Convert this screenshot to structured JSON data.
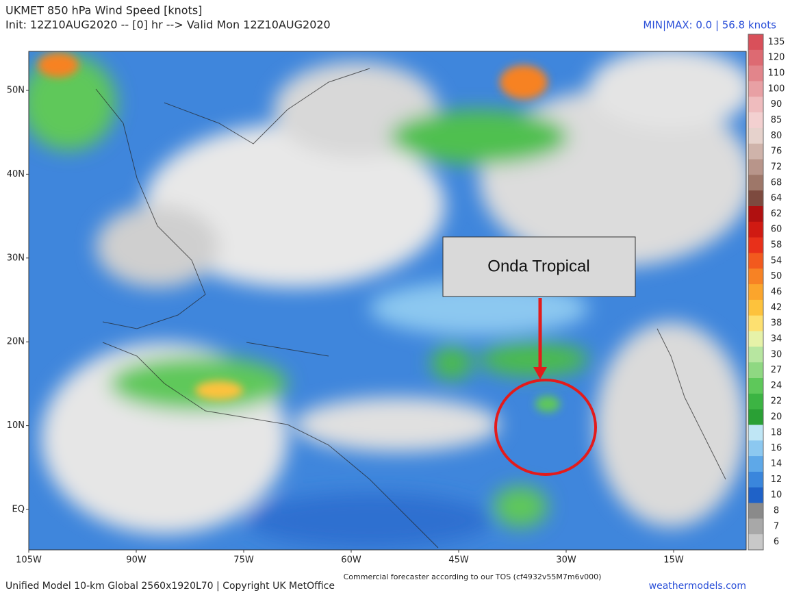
{
  "header": {
    "title": "UKMET 850 hPa Wind Speed [knots]",
    "subtitle": "Init: 12Z10AUG2020 -- [0] hr --> Valid Mon 12Z10AUG2020",
    "minmax": "MIN|MAX: 0.0 | 56.8 knots"
  },
  "map": {
    "latitude_labels": [
      "50N",
      "40N",
      "30N",
      "20N",
      "10N",
      "EQ"
    ],
    "longitude_labels": [
      "105W",
      "90W",
      "75W",
      "60W",
      "45W",
      "30W",
      "15W"
    ],
    "annotation": "Onda Tropical"
  },
  "colorbar": {
    "entries": [
      {
        "label": "135",
        "color": "#d9505a"
      },
      {
        "label": "120",
        "color": "#dd6a72"
      },
      {
        "label": "110",
        "color": "#e2858b"
      },
      {
        "label": "100",
        "color": "#e8a0a4"
      },
      {
        "label": "90",
        "color": "#efbcbe"
      },
      {
        "label": "85",
        "color": "#f3d0d0"
      },
      {
        "label": "80",
        "color": "#e6d2cc"
      },
      {
        "label": "76",
        "color": "#cfb3aa"
      },
      {
        "label": "72",
        "color": "#b8958a"
      },
      {
        "label": "68",
        "color": "#9e7769"
      },
      {
        "label": "64",
        "color": "#7d4a3f"
      },
      {
        "label": "62",
        "color": "#b01010"
      },
      {
        "label": "60",
        "color": "#d01a12"
      },
      {
        "label": "58",
        "color": "#e8301a"
      },
      {
        "label": "54",
        "color": "#f25a1e"
      },
      {
        "label": "50",
        "color": "#f78224"
      },
      {
        "label": "46",
        "color": "#fba52c"
      },
      {
        "label": "42",
        "color": "#fdc23c"
      },
      {
        "label": "38",
        "color": "#fde070"
      },
      {
        "label": "34",
        "color": "#e6f2a8"
      },
      {
        "label": "30",
        "color": "#b7e6a0"
      },
      {
        "label": "27",
        "color": "#8fd882"
      },
      {
        "label": "24",
        "color": "#5ec85a"
      },
      {
        "label": "22",
        "color": "#3cb443"
      },
      {
        "label": "20",
        "color": "#2aa035"
      },
      {
        "label": "18",
        "color": "#bfe6f5"
      },
      {
        "label": "16",
        "color": "#8cc8f0"
      },
      {
        "label": "14",
        "color": "#5ea8e8"
      },
      {
        "label": "12",
        "color": "#3a86dc"
      },
      {
        "label": "10",
        "color": "#1f62c8"
      },
      {
        "label": "8",
        "color": "#8a8a8a"
      },
      {
        "label": "7",
        "color": "#a8a8a8"
      },
      {
        "label": "6",
        "color": "#c8c8c8"
      }
    ]
  },
  "footer": {
    "model": "Unified Model 10-km Global 2560x1920L70 | Copyright UK MetOffice",
    "tos": "Commercial forecaster according to our TOS (cf4932v55M7m6v000)",
    "site": "weathermodels.com"
  }
}
